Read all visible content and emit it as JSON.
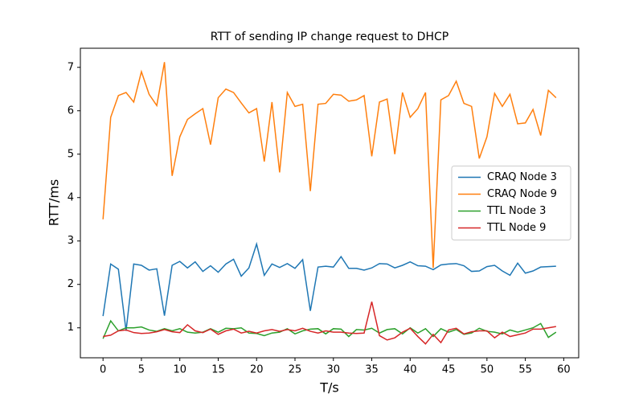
{
  "chart_data": {
    "type": "line",
    "title": "RTT of sending IP change request to DHCP",
    "xlabel": "T/s",
    "ylabel": "RTT/ms",
    "x": [
      0,
      1,
      2,
      3,
      4,
      5,
      6,
      7,
      8,
      9,
      10,
      11,
      12,
      13,
      14,
      15,
      16,
      17,
      18,
      19,
      20,
      21,
      22,
      23,
      24,
      25,
      26,
      27,
      28,
      29,
      30,
      31,
      32,
      33,
      34,
      35,
      36,
      37,
      38,
      39,
      40,
      41,
      42,
      43,
      44,
      45,
      46,
      47,
      48,
      49,
      50,
      51,
      52,
      53,
      54,
      55,
      56,
      57,
      58,
      59
    ],
    "series": [
      {
        "name": "CRAQ Node 3",
        "color": "#1f77b4",
        "values": [
          1.27,
          2.47,
          2.35,
          0.93,
          2.47,
          2.44,
          2.33,
          2.36,
          1.28,
          2.44,
          2.53,
          2.38,
          2.52,
          2.3,
          2.43,
          2.28,
          2.47,
          2.58,
          2.19,
          2.38,
          2.93,
          2.21,
          2.47,
          2.39,
          2.48,
          2.37,
          2.57,
          1.39,
          2.4,
          2.42,
          2.4,
          2.64,
          2.37,
          2.37,
          2.33,
          2.38,
          2.48,
          2.47,
          2.38,
          2.44,
          2.52,
          2.43,
          2.42,
          2.34,
          2.45,
          2.47,
          2.48,
          2.43,
          2.3,
          2.31,
          2.41,
          2.44,
          2.31,
          2.21,
          2.49,
          2.26,
          2.31,
          2.4,
          2.41,
          2.42
        ]
      },
      {
        "name": "CRAQ Node 9",
        "color": "#ff7f0e",
        "values": [
          3.5,
          5.85,
          6.35,
          6.42,
          6.2,
          6.9,
          6.38,
          6.12,
          7.12,
          4.5,
          5.4,
          5.8,
          5.93,
          6.05,
          5.22,
          6.3,
          6.5,
          6.42,
          6.18,
          5.95,
          6.05,
          4.83,
          6.2,
          4.58,
          6.42,
          6.1,
          6.15,
          4.15,
          6.15,
          6.17,
          6.38,
          6.36,
          6.22,
          6.25,
          6.35,
          4.95,
          6.2,
          6.27,
          5.0,
          6.42,
          5.85,
          6.05,
          6.42,
          2.38,
          6.25,
          6.35,
          6.68,
          6.17,
          6.1,
          4.9,
          5.4,
          6.4,
          6.1,
          6.38,
          5.7,
          5.72,
          6.03,
          5.43,
          6.47,
          6.3
        ]
      },
      {
        "name": "TTL Node 3",
        "color": "#2ca02c",
        "values": [
          0.75,
          1.16,
          0.93,
          1.0,
          1.0,
          1.02,
          0.95,
          0.92,
          0.98,
          0.93,
          0.98,
          0.9,
          0.88,
          0.9,
          0.98,
          0.9,
          0.99,
          0.98,
          1.0,
          0.88,
          0.87,
          0.82,
          0.88,
          0.9,
          0.98,
          0.86,
          0.93,
          0.97,
          0.98,
          0.86,
          0.98,
          0.97,
          0.8,
          0.96,
          0.95,
          0.99,
          0.88,
          0.96,
          0.98,
          0.86,
          1.0,
          0.88,
          0.98,
          0.8,
          0.98,
          0.9,
          0.96,
          0.85,
          0.88,
          0.99,
          0.92,
          0.9,
          0.86,
          0.95,
          0.9,
          0.95,
          1.0,
          1.1,
          0.78,
          0.9
        ]
      },
      {
        "name": "TTL Node 9",
        "color": "#d62728",
        "values": [
          0.8,
          0.83,
          0.93,
          0.95,
          0.89,
          0.87,
          0.88,
          0.91,
          0.96,
          0.91,
          0.89,
          1.07,
          0.93,
          0.89,
          0.97,
          0.85,
          0.93,
          0.97,
          0.88,
          0.92,
          0.88,
          0.93,
          0.96,
          0.92,
          0.96,
          0.93,
          0.99,
          0.92,
          0.88,
          0.93,
          0.9,
          0.9,
          0.88,
          0.87,
          0.88,
          1.6,
          0.82,
          0.72,
          0.77,
          0.9,
          0.99,
          0.8,
          0.63,
          0.85,
          0.66,
          0.95,
          0.99,
          0.86,
          0.91,
          0.93,
          0.93,
          0.77,
          0.9,
          0.8,
          0.84,
          0.88,
          0.97,
          0.97,
          1.0,
          1.03
        ]
      }
    ],
    "xlim": [
      -2.95,
      61.95
    ],
    "xticks": [
      0,
      5,
      10,
      15,
      20,
      25,
      30,
      35,
      40,
      45,
      50,
      55,
      60
    ],
    "ylim": [
      0.31,
      7.44
    ],
    "yticks": [
      1,
      2,
      3,
      4,
      5,
      6,
      7
    ],
    "legend": "center right"
  }
}
